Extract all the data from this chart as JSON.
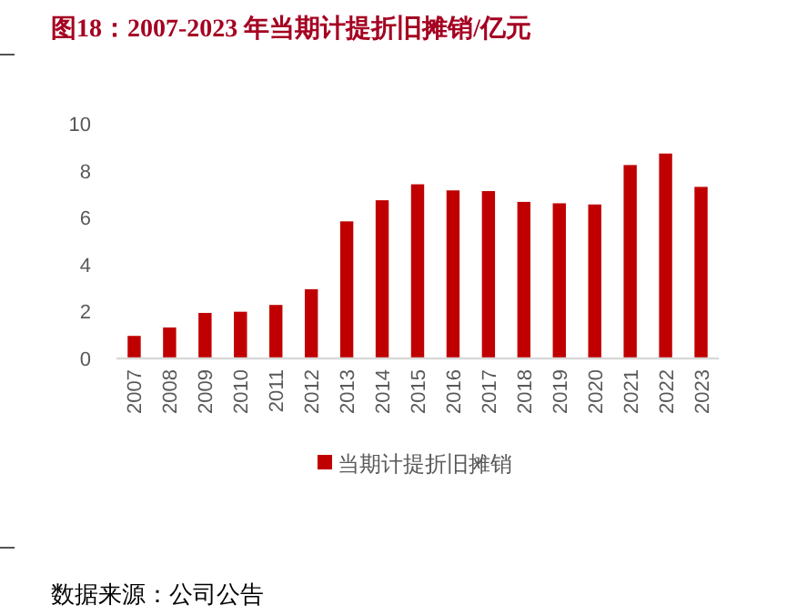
{
  "chart_data": {
    "type": "bar",
    "title": "图18：2007-2023 年当期计提折旧摊销/亿元",
    "categories": [
      "2007",
      "2008",
      "2009",
      "2010",
      "2011",
      "2012",
      "2013",
      "2014",
      "2015",
      "2016",
      "2017",
      "2018",
      "2019",
      "2020",
      "2021",
      "2022",
      "2023"
    ],
    "series": [
      {
        "name": "当期计提折旧摊销",
        "color": "#c00000",
        "values": [
          0.96,
          1.32,
          1.94,
          1.99,
          2.28,
          2.95,
          5.84,
          6.74,
          7.42,
          7.16,
          7.13,
          6.67,
          6.61,
          6.56,
          8.24,
          8.73,
          7.31
        ]
      }
    ],
    "ylim": [
      0,
      10
    ],
    "yticks": [
      0,
      2,
      4,
      6,
      8,
      10
    ],
    "legend": "bottom",
    "annotations": [
      "数据来源：公司公告"
    ]
  }
}
